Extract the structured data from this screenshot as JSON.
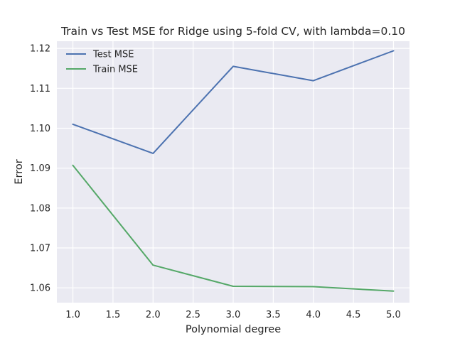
{
  "chart_data": {
    "type": "line",
    "title": "Train vs Test MSE for Ridge using 5-fold CV, with lambda=0.10",
    "xlabel": "Polynomial degree",
    "ylabel": "Error",
    "xlim": [
      0.8,
      5.2
    ],
    "ylim": [
      1.0563,
      1.1218
    ],
    "xticks": [
      1.0,
      1.5,
      2.0,
      2.5,
      3.0,
      3.5,
      4.0,
      4.5,
      5.0
    ],
    "xtick_labels": [
      "1.0",
      "1.5",
      "2.0",
      "2.5",
      "3.0",
      "3.5",
      "4.0",
      "4.5",
      "5.0"
    ],
    "yticks": [
      1.06,
      1.07,
      1.08,
      1.09,
      1.1,
      1.11,
      1.12
    ],
    "ytick_labels": [
      "1.06",
      "1.07",
      "1.08",
      "1.09",
      "1.10",
      "1.11",
      "1.12"
    ],
    "grid": true,
    "legend_position": "top-left",
    "x": [
      1,
      2,
      3,
      4,
      5
    ],
    "series": [
      {
        "name": "Test MSE",
        "color": "#4c72b0",
        "values": [
          1.101,
          1.0937,
          1.1155,
          1.1119,
          1.1194
        ]
      },
      {
        "name": "Train MSE",
        "color": "#55a868",
        "values": [
          1.0907,
          1.0657,
          1.0604,
          1.0603,
          1.0592
        ]
      }
    ],
    "colors": {
      "plot_background": "#eaeaf2",
      "grid": "#ffffff"
    }
  }
}
